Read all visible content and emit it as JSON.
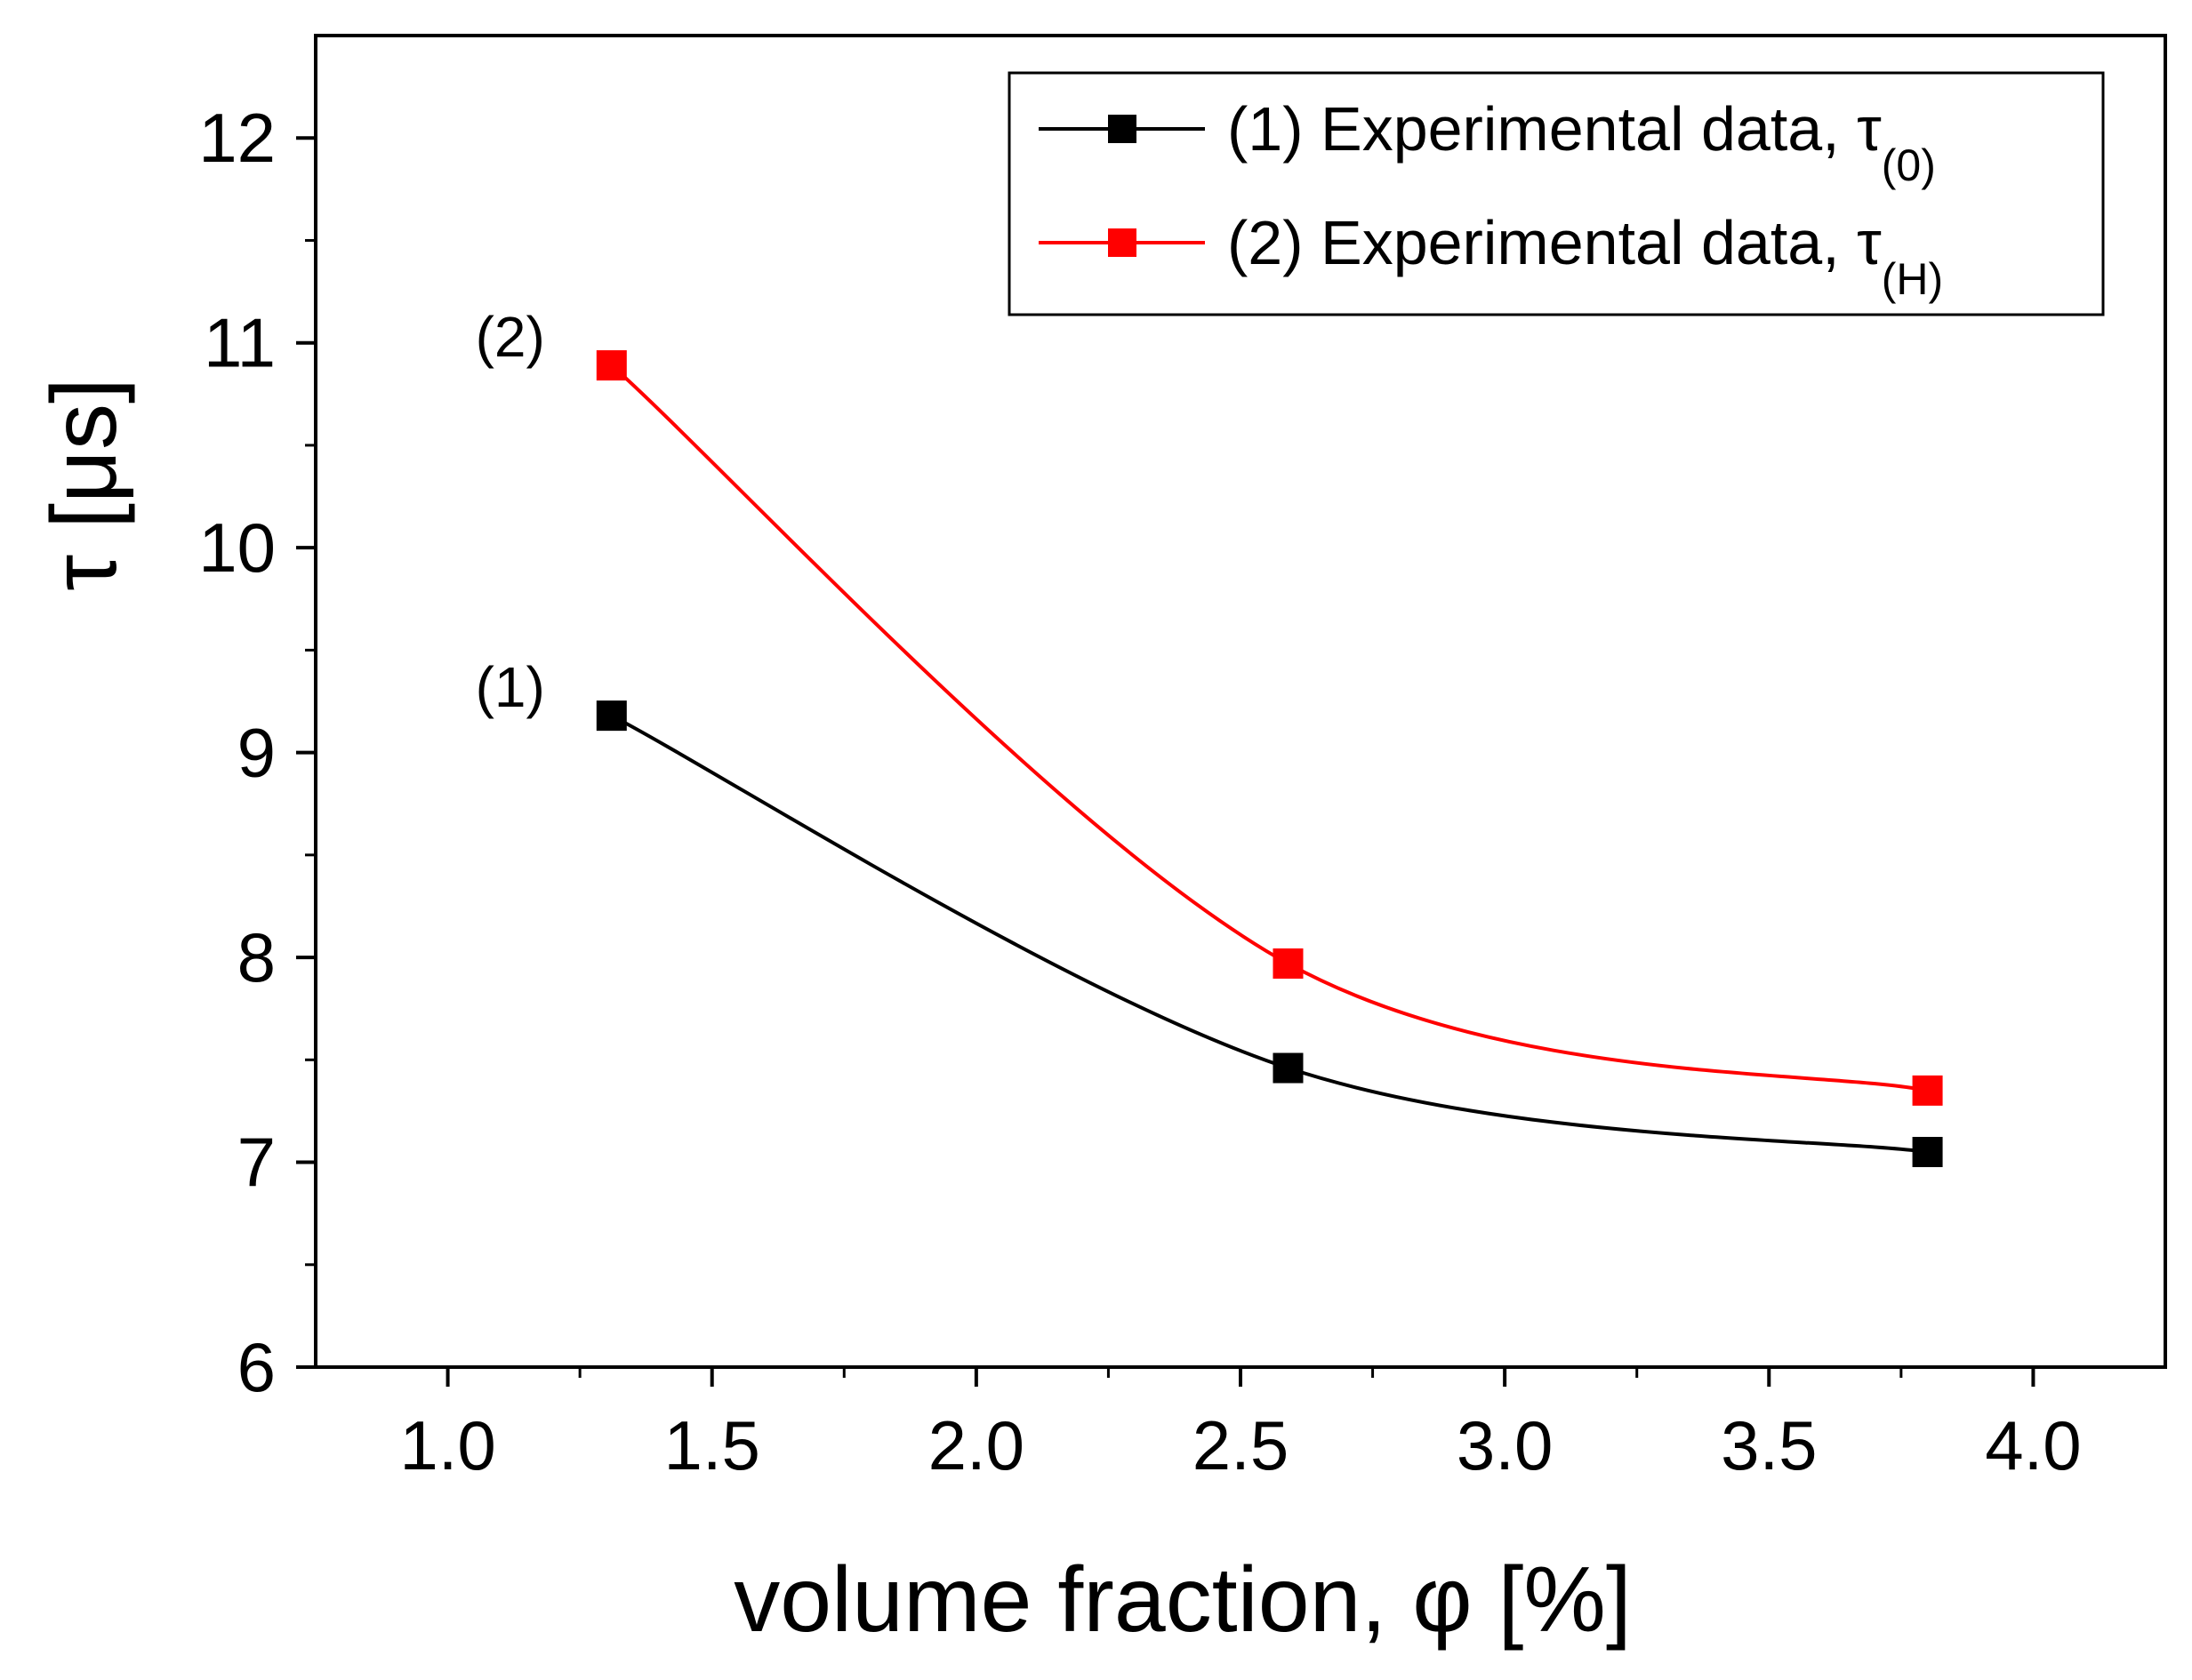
{
  "chart_data": {
    "type": "line",
    "xlabel": "volume fraction, φ [%]",
    "ylabel": "τ [μs]",
    "xlim": [
      0.75,
      4.25
    ],
    "ylim": [
      6,
      12.5
    ],
    "x_ticks": [
      1.0,
      1.5,
      2.0,
      2.5,
      3.0,
      3.5,
      4.0
    ],
    "x_tick_labels": [
      "1.0",
      "1.5",
      "2.0",
      "2.5",
      "3.0",
      "3.5",
      "4.0"
    ],
    "y_ticks": [
      6,
      7,
      8,
      9,
      10,
      11,
      12
    ],
    "y_tick_labels": [
      "6",
      "7",
      "8",
      "9",
      "10",
      "11",
      "12"
    ],
    "grid": false,
    "legend_position": "top-right",
    "series": [
      {
        "name": "(1) Experimental data, τ",
        "subscript": "(0)",
        "annotation": "(1)",
        "color": "#000000",
        "x": [
          1.31,
          2.59,
          3.8
        ],
        "y": [
          9.18,
          7.46,
          7.05
        ]
      },
      {
        "name": "(2) Experimental data, τ",
        "subscript": "(H)",
        "annotation": "(2)",
        "color": "#ff0000",
        "x": [
          1.31,
          2.59,
          3.8
        ],
        "y": [
          10.89,
          7.97,
          7.35
        ]
      }
    ]
  }
}
